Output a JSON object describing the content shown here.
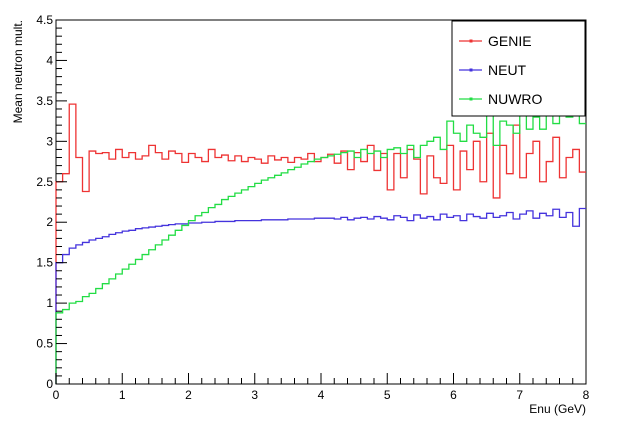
{
  "chart_data": {
    "type": "line",
    "step": true,
    "title": "",
    "xlabel": "Enu (GeV)",
    "ylabel": "Mean neutron mult.",
    "xlim": [
      0,
      8
    ],
    "ylim": [
      0,
      4.5
    ],
    "x_major_ticks": [
      0,
      1,
      2,
      3,
      4,
      5,
      6,
      7,
      8
    ],
    "y_major_ticks": [
      0,
      0.5,
      1,
      1.5,
      2,
      2.5,
      3,
      3.5,
      4,
      4.5
    ],
    "x_tick_labels": [
      "0",
      "1",
      "2",
      "3",
      "4",
      "5",
      "6",
      "7",
      "8"
    ],
    "y_tick_labels": [
      "0",
      "0.5",
      "1",
      "1.5",
      "2",
      "2.5",
      "3",
      "3.5",
      "4",
      "4.5"
    ],
    "grid": false,
    "legend_position": "top-right",
    "bin_width": 0.1,
    "x": [
      0.0,
      0.1,
      0.2,
      0.3,
      0.4,
      0.5,
      0.6,
      0.7,
      0.8,
      0.9,
      1.0,
      1.1,
      1.2,
      1.3,
      1.4,
      1.5,
      1.6,
      1.7,
      1.8,
      1.9,
      2.0,
      2.1,
      2.2,
      2.3,
      2.4,
      2.5,
      2.6,
      2.7,
      2.8,
      2.9,
      3.0,
      3.1,
      3.2,
      3.3,
      3.4,
      3.5,
      3.6,
      3.7,
      3.8,
      3.9,
      4.0,
      4.1,
      4.2,
      4.3,
      4.4,
      4.5,
      4.6,
      4.7,
      4.8,
      4.9,
      5.0,
      5.1,
      5.2,
      5.3,
      5.4,
      5.5,
      5.6,
      5.7,
      5.8,
      5.9,
      6.0,
      6.1,
      6.2,
      6.3,
      6.4,
      6.5,
      6.6,
      6.7,
      6.8,
      6.9,
      7.0,
      7.1,
      7.2,
      7.3,
      7.4,
      7.5,
      7.6,
      7.7,
      7.8,
      7.9
    ],
    "series": [
      {
        "name": "GENIE",
        "color": "#ee3333",
        "values": [
          2.5,
          2.6,
          3.46,
          2.8,
          2.38,
          2.88,
          2.85,
          2.86,
          2.78,
          2.9,
          2.8,
          2.86,
          2.78,
          2.82,
          2.95,
          2.86,
          2.78,
          2.88,
          2.85,
          2.74,
          2.85,
          2.8,
          2.75,
          2.9,
          2.8,
          2.83,
          2.76,
          2.82,
          2.75,
          2.8,
          2.78,
          2.73,
          2.82,
          2.77,
          2.8,
          2.74,
          2.8,
          2.78,
          2.85,
          2.75,
          2.8,
          2.84,
          2.73,
          2.88,
          2.65,
          2.86,
          2.75,
          2.95,
          2.64,
          2.85,
          2.4,
          2.85,
          2.55,
          2.9,
          2.78,
          2.35,
          2.82,
          2.55,
          2.48,
          2.95,
          2.4,
          2.88,
          2.65,
          3.0,
          2.5,
          3.1,
          2.3,
          2.95,
          2.6,
          3.2,
          2.55,
          2.85,
          3.0,
          2.5,
          2.75,
          3.05,
          2.55,
          2.8,
          2.9,
          2.62
        ]
      },
      {
        "name": "NEUT",
        "color": "#4433dd",
        "values": [
          1.5,
          1.6,
          1.68,
          1.72,
          1.75,
          1.78,
          1.8,
          1.82,
          1.85,
          1.87,
          1.89,
          1.9,
          1.92,
          1.93,
          1.94,
          1.95,
          1.96,
          1.97,
          1.98,
          1.98,
          1.99,
          1.99,
          2.0,
          2.0,
          2.01,
          2.01,
          2.01,
          2.02,
          2.02,
          2.02,
          2.02,
          2.03,
          2.03,
          2.03,
          2.03,
          2.04,
          2.04,
          2.04,
          2.04,
          2.05,
          2.05,
          2.05,
          2.04,
          2.06,
          2.03,
          2.05,
          2.06,
          2.04,
          2.07,
          2.05,
          2.03,
          2.08,
          2.06,
          2.02,
          2.09,
          2.05,
          2.07,
          2.03,
          2.1,
          2.06,
          2.08,
          2.02,
          2.1,
          2.07,
          2.05,
          2.11,
          2.06,
          2.08,
          2.12,
          2.04,
          2.1,
          2.14,
          2.05,
          2.11,
          2.08,
          2.16,
          2.06,
          2.12,
          1.95,
          2.17
        ]
      },
      {
        "name": "NUWRO",
        "color": "#22dd44",
        "values": [
          0.88,
          0.92,
          1.0,
          1.02,
          1.08,
          1.12,
          1.18,
          1.24,
          1.3,
          1.36,
          1.42,
          1.48,
          1.54,
          1.6,
          1.66,
          1.72,
          1.78,
          1.84,
          1.9,
          1.96,
          2.02,
          2.08,
          2.12,
          2.18,
          2.22,
          2.28,
          2.32,
          2.36,
          2.4,
          2.44,
          2.48,
          2.52,
          2.55,
          2.58,
          2.61,
          2.65,
          2.68,
          2.72,
          2.75,
          2.78,
          2.8,
          2.82,
          2.84,
          2.86,
          2.88,
          2.8,
          2.9,
          2.85,
          2.88,
          2.8,
          2.9,
          2.92,
          2.85,
          2.95,
          2.8,
          2.95,
          3.0,
          3.05,
          2.9,
          3.25,
          3.1,
          3.0,
          3.2,
          3.1,
          3.05,
          3.35,
          2.95,
          3.25,
          3.2,
          3.1,
          3.35,
          3.15,
          3.3,
          3.15,
          3.4,
          3.22,
          3.35,
          3.3,
          3.35,
          3.22
        ]
      }
    ]
  }
}
